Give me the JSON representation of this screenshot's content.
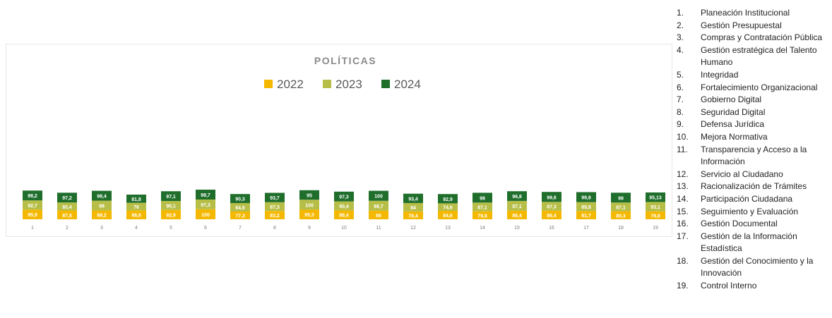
{
  "chart_data": {
    "type": "bar",
    "stacked": true,
    "title": "POLÍTICAS",
    "legend_position": "top-center",
    "grid": false,
    "categories": [
      "1",
      "2",
      "3",
      "4",
      "5",
      "6",
      "7",
      "8",
      "9",
      "10",
      "11",
      "12",
      "13",
      "14",
      "15",
      "16",
      "17",
      "18",
      "19"
    ],
    "series": [
      {
        "name": "2022",
        "color": "#F5B800",
        "values": [
          95.9,
          87.8,
          88.2,
          88.8,
          92.9,
          100,
          77.3,
          83.2,
          95.3,
          88.4,
          86,
          78.4,
          84.6,
          79.8,
          86.4,
          86.4,
          81.7,
          80.3,
          79.8
        ],
        "labels": [
          "95,9",
          "87,8",
          "88,2",
          "88,8",
          "92,9",
          "100",
          "77,3",
          "83,2",
          "95,3",
          "88,4",
          "86",
          "78,4",
          "84,6",
          "79,8",
          "86,4",
          "86,4",
          "81,7",
          "80,3",
          "79,8"
        ]
      },
      {
        "name": "2023",
        "color": "#B7BE47",
        "values": [
          92.7,
          80.4,
          98,
          76,
          90.1,
          97.3,
          84.6,
          87.3,
          100,
          90.4,
          98.7,
          84,
          74.6,
          87.1,
          97.1,
          87.3,
          89.8,
          87.1,
          93.1
        ],
        "labels": [
          "92,7",
          "80,4",
          "98",
          "76",
          "90,1",
          "97,3",
          "84,6",
          "87,3",
          "100",
          "90,4",
          "98,7",
          "84",
          "74,6",
          "87,1",
          "97,1",
          "87,3",
          "89,8",
          "87,1",
          "93,1"
        ]
      },
      {
        "name": "2024",
        "color": "#1F6E2C",
        "values": [
          98.2,
          97.2,
          98.4,
          81.8,
          97.1,
          98.7,
          90.3,
          93.7,
          95,
          97.3,
          100,
          93.4,
          92.9,
          98,
          96.8,
          99.6,
          99.8,
          98,
          95.13
        ],
        "labels": [
          "98,2",
          "97,2",
          "98,4",
          "81,8",
          "97,1",
          "98,7",
          "90,3",
          "93,7",
          "95",
          "97,3",
          "100",
          "93,4",
          "92,9",
          "98",
          "96,8",
          "99,6",
          "99,8",
          "98",
          "95,13"
        ]
      }
    ]
  },
  "legend_list": [
    {
      "num": "1.",
      "text": "Planeación Institucional"
    },
    {
      "num": "2.",
      "text": "Gestión Presupuestal"
    },
    {
      "num": "3.",
      "text": "Compras y Contratación Pública"
    },
    {
      "num": "4.",
      "text": "Gestión estratégica del Talento Humano"
    },
    {
      "num": "5.",
      "text": "Integridad"
    },
    {
      "num": "6.",
      "text": "Fortalecimiento Organizacional"
    },
    {
      "num": "7.",
      "text": "Gobierno Digital"
    },
    {
      "num": "8.",
      "text": "Seguridad Digital"
    },
    {
      "num": "9.",
      "text": "Defensa Jurídica"
    },
    {
      "num": "10.",
      "text": "Mejora Normativa"
    },
    {
      "num": "11.",
      "text": "Transparencia y Acceso a la Información"
    },
    {
      "num": "12.",
      "text": "Servicio al Ciudadano"
    },
    {
      "num": "13.",
      "text": "Racionalización de Trámites"
    },
    {
      "num": "14.",
      "text": "Participación Ciudadana"
    },
    {
      "num": "15.",
      "text": "Seguimiento y Evaluación"
    },
    {
      "num": "16.",
      "text": "Gestión Documental"
    },
    {
      "num": "17.",
      "text": "Gestión de la Información Estadística"
    },
    {
      "num": "18.",
      "text": "Gestión del Conocimiento y la Innovación"
    },
    {
      "num": "19.",
      "text": "Control Interno"
    }
  ]
}
